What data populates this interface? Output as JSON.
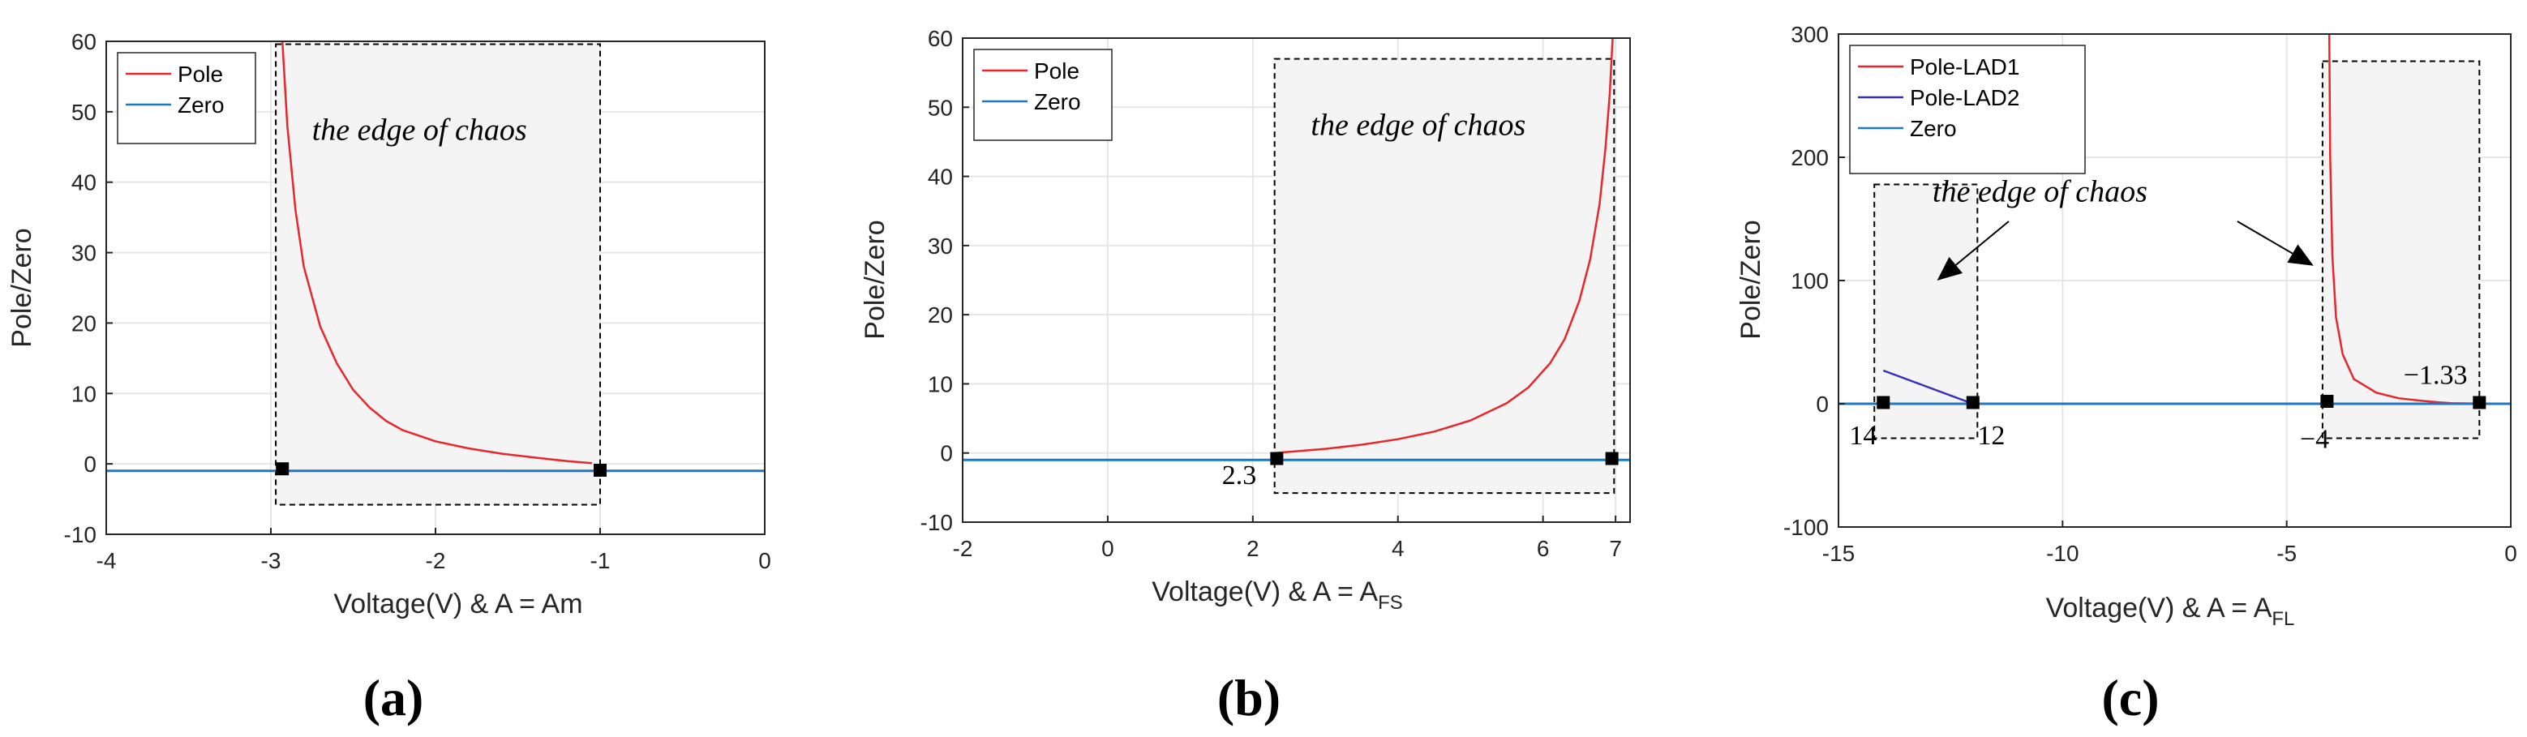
{
  "colors": {
    "pole": "#e8262b",
    "zero": "#1f77c0",
    "pole_lad2": "#3a2fb8",
    "axis": "#262626",
    "grid": "#e6e6e6",
    "region_fill": "#f4f4f4"
  },
  "chart_data": [
    {
      "type": "line",
      "panel_label": "(a)",
      "xlabel": "Voltage(V) & A = Am",
      "ylabel": "Pole/Zero",
      "xlim": [
        -4,
        0
      ],
      "ylim": [
        -10,
        60
      ],
      "xticks": [
        -4,
        -3,
        -2,
        -1,
        0
      ],
      "xtick_labels": [
        "-4",
        "-3",
        "-2",
        "-1",
        "0"
      ],
      "yticks": [
        -10,
        0,
        10,
        20,
        30,
        40,
        50,
        60
      ],
      "ytick_labels": [
        "-10",
        "0",
        "10",
        "20",
        "30",
        "40",
        "50",
        "60"
      ],
      "grid": true,
      "legend": {
        "position": "top-left",
        "entries": [
          "Pole",
          "Zero"
        ]
      },
      "series": [
        {
          "name": "Pole",
          "color_key": "pole",
          "points": [
            [
              -2.93,
              60
            ],
            [
              -2.9,
              48
            ],
            [
              -2.85,
              36
            ],
            [
              -2.8,
              28
            ],
            [
              -2.7,
              19.5
            ],
            [
              -2.6,
              14.3
            ],
            [
              -2.5,
              10.5
            ],
            [
              -2.4,
              8
            ],
            [
              -2.3,
              6.1
            ],
            [
              -2.2,
              4.8
            ],
            [
              -2.0,
              3.2
            ],
            [
              -1.8,
              2.2
            ],
            [
              -1.6,
              1.45
            ],
            [
              -1.4,
              0.9
            ],
            [
              -1.2,
              0.4
            ],
            [
              -1.05,
              0.1
            ]
          ]
        },
        {
          "name": "Zero",
          "color_key": "zero",
          "points": [
            [
              -4,
              -1
            ],
            [
              0,
              -1
            ]
          ]
        }
      ],
      "region": {
        "x": [
          -2.97,
          -1.0
        ],
        "y": [
          -5.8,
          59.6
        ]
      },
      "markers": [
        [
          -2.93,
          -0.7
        ],
        [
          -1.0,
          -0.9
        ]
      ],
      "annotations": {
        "edge": "the edge of chaos"
      },
      "edge_pos": [
        -2.75,
        46
      ]
    },
    {
      "type": "line",
      "panel_label": "(b)",
      "xlabel_main": "Voltage(V) & A = A",
      "xlabel_sub": "FS",
      "ylabel": "Pole/Zero",
      "xlim": [
        -2,
        7.2
      ],
      "ylim": [
        -10,
        60
      ],
      "xticks": [
        -2,
        0,
        2,
        4,
        6,
        7
      ],
      "xtick_labels": [
        "-2",
        "0",
        "2",
        "4",
        "6",
        "7"
      ],
      "yticks": [
        -10,
        0,
        10,
        20,
        30,
        40,
        50,
        60
      ],
      "ytick_labels": [
        "-10",
        "0",
        "10",
        "20",
        "30",
        "40",
        "50",
        "60"
      ],
      "grid": true,
      "legend": {
        "position": "top-left",
        "entries": [
          "Pole",
          "Zero"
        ]
      },
      "series": [
        {
          "name": "Pole",
          "color_key": "pole",
          "points": [
            [
              2.3,
              0
            ],
            [
              3.0,
              0.6
            ],
            [
              3.5,
              1.2
            ],
            [
              4.0,
              2
            ],
            [
              4.5,
              3.1
            ],
            [
              5.0,
              4.7
            ],
            [
              5.5,
              7.2
            ],
            [
              5.8,
              9.5
            ],
            [
              6.1,
              13
            ],
            [
              6.3,
              16.5
            ],
            [
              6.5,
              22
            ],
            [
              6.65,
              28
            ],
            [
              6.78,
              36
            ],
            [
              6.86,
              44
            ],
            [
              6.92,
              52
            ],
            [
              6.96,
              60
            ]
          ]
        },
        {
          "name": "Zero",
          "color_key": "zero",
          "points": [
            [
              -2,
              -1
            ],
            [
              7.2,
              -1
            ]
          ]
        }
      ],
      "region": {
        "x": [
          2.3,
          6.98
        ],
        "y": [
          -5.8,
          57
        ]
      },
      "markers": [
        [
          2.33,
          -0.8
        ],
        [
          6.95,
          -0.8
        ]
      ],
      "annotations": {
        "edge": "the edge of chaos",
        "value_left": "2.3"
      },
      "edge_pos": [
        2.8,
        46
      ]
    },
    {
      "type": "line",
      "panel_label": "(c)",
      "xlabel_main": "Voltage(V) & A = A",
      "xlabel_sub": "FL",
      "ylabel": "Pole/Zero",
      "xlim": [
        -15,
        0
      ],
      "ylim": [
        -100,
        300
      ],
      "xticks": [
        -15,
        -10,
        -5,
        0
      ],
      "xtick_labels": [
        "-15",
        "-10",
        "-5",
        "0"
      ],
      "yticks": [
        -100,
        0,
        100,
        200,
        300
      ],
      "ytick_labels": [
        "-100",
        "0",
        "100",
        "200",
        "300"
      ],
      "grid": true,
      "legend": {
        "position": "top-left",
        "entries": [
          "Pole-LAD1",
          "Pole-LAD2",
          "Zero"
        ]
      },
      "series": [
        {
          "name": "Pole-LAD1",
          "color_key": "pole",
          "points": [
            [
              -4.05,
              300
            ],
            [
              -4.03,
              200
            ],
            [
              -3.98,
              120
            ],
            [
              -3.9,
              70
            ],
            [
              -3.75,
              40
            ],
            [
              -3.5,
              20
            ],
            [
              -3.0,
              9
            ],
            [
              -2.5,
              4.5
            ],
            [
              -2.0,
              2.5
            ],
            [
              -1.6,
              1.2
            ],
            [
              -1.33,
              0.5
            ],
            [
              -0.8,
              0.2
            ]
          ]
        },
        {
          "name": "Pole-LAD2",
          "color_key": "pole_lad2",
          "points": [
            [
              -14,
              27
            ],
            [
              -12,
              0
            ]
          ]
        },
        {
          "name": "Zero",
          "color_key": "zero",
          "points": [
            [
              -15,
              0
            ],
            [
              0,
              0
            ]
          ]
        }
      ],
      "regions": [
        {
          "x": [
            -14.2,
            -11.9
          ],
          "y": [
            -28,
            178
          ]
        },
        {
          "x": [
            -4.2,
            -0.7
          ],
          "y": [
            -28,
            278
          ]
        }
      ],
      "markers": [
        [
          -14,
          1
        ],
        [
          -12,
          1
        ],
        [
          -4.1,
          2
        ],
        [
          -0.7,
          1
        ]
      ],
      "annotations": {
        "edge": "the edge of chaos",
        "v14": "14",
        "v12": "12",
        "v_m4": "−4",
        "v_m133": "−1.33"
      },
      "edge_pos": [
        -12.9,
        164
      ],
      "arrows": [
        {
          "from": [
            -11.2,
            148
          ],
          "to": [
            -12.8,
            100
          ]
        },
        {
          "from": [
            -6.1,
            148
          ],
          "to": [
            -4.4,
            112
          ]
        }
      ]
    }
  ]
}
